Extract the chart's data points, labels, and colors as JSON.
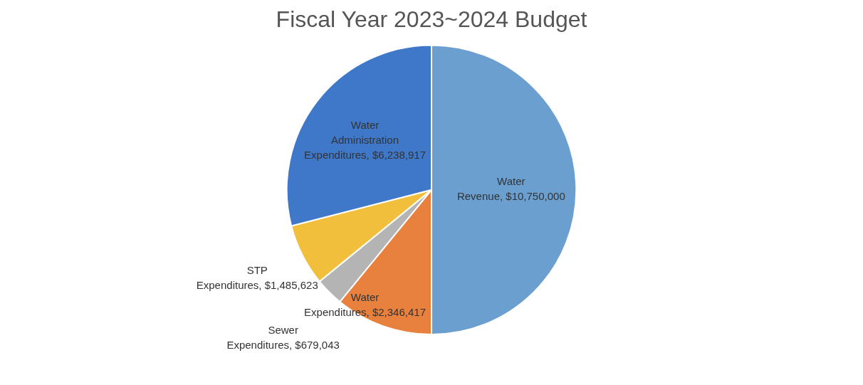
{
  "chart_data": {
    "type": "pie",
    "title": "Fiscal Year 2023~2024 Budget",
    "categories": [
      "Water Revenue",
      "Water Expenditures",
      "Sewer Expenditures",
      "STP Expenditures",
      "Water Administration Expenditures"
    ],
    "values": [
      10750000,
      2346417,
      679043,
      1485623,
      6238917
    ],
    "value_labels": [
      "$10,750,000",
      "$2,346,417",
      "$679,043",
      "$1,485,623",
      "$6,238,917"
    ],
    "colors": [
      "#6a9fd0",
      "#e8803e",
      "#b4b4b4",
      "#f2bf3c",
      "#3f78c8"
    ],
    "legend": false
  }
}
